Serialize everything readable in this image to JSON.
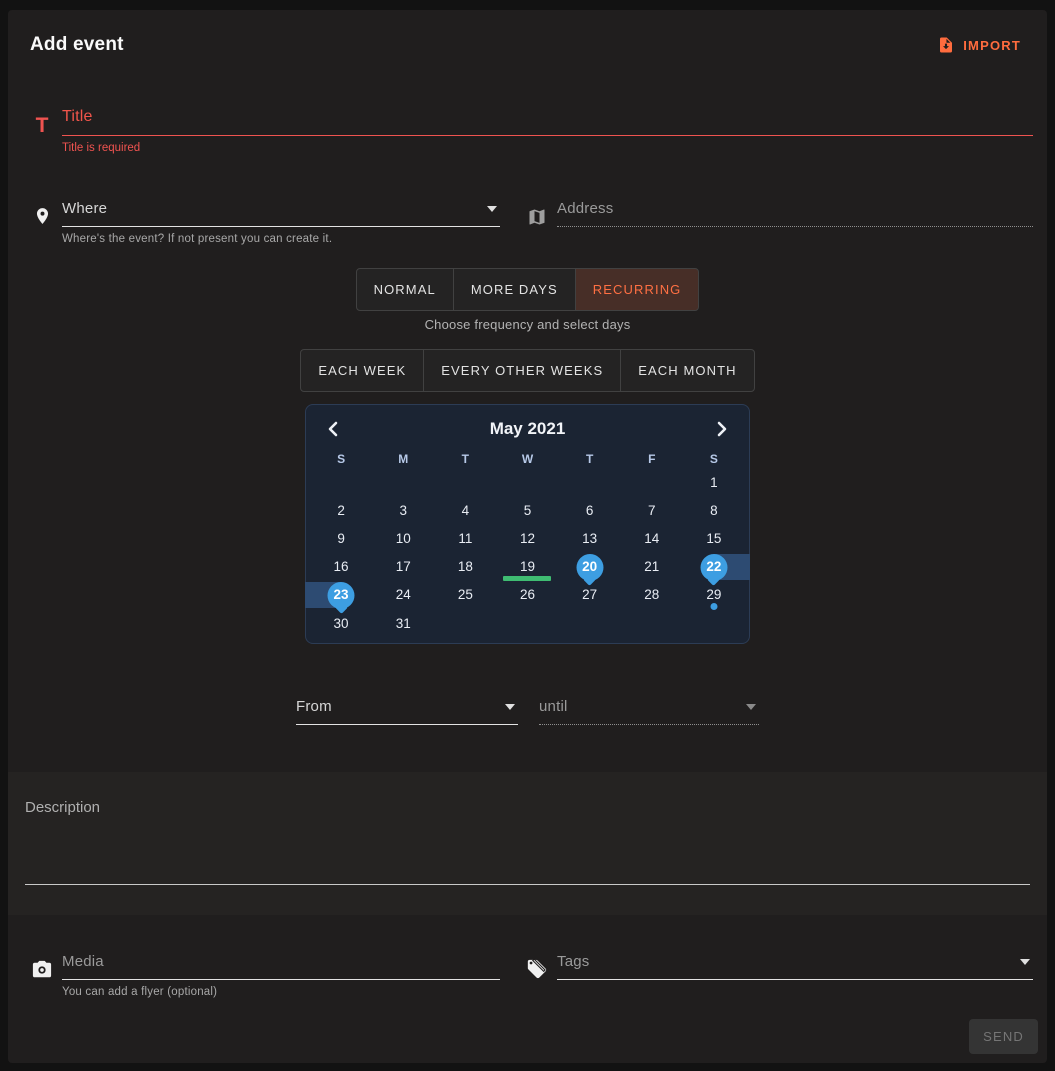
{
  "header": {
    "title": "Add event",
    "import_label": "IMPORT"
  },
  "fields": {
    "title": {
      "placeholder": "Title",
      "error": "Title is required"
    },
    "where": {
      "placeholder": "Where",
      "helper": "Where's the event? If not present you can create it."
    },
    "address": {
      "placeholder": "Address"
    },
    "from": {
      "placeholder": "From"
    },
    "until": {
      "placeholder": "until"
    },
    "description": {
      "placeholder": "Description"
    },
    "media": {
      "placeholder": "Media",
      "helper": "You can add a flyer (optional)"
    },
    "tags": {
      "placeholder": "Tags"
    }
  },
  "event_type_tabs": [
    {
      "label": "NORMAL",
      "active": false
    },
    {
      "label": "MORE DAYS",
      "active": false
    },
    {
      "label": "RECURRING",
      "active": true
    }
  ],
  "frequency": {
    "hint": "Choose frequency and select days",
    "options": [
      "EACH WEEK",
      "EVERY OTHER WEEKS",
      "EACH MONTH"
    ]
  },
  "calendar": {
    "month_label": "May 2021",
    "weekdays": [
      "S",
      "M",
      "T",
      "W",
      "T",
      "F",
      "S"
    ],
    "days_in_month": 31,
    "first_day_column": 7,
    "selected_days": [
      20,
      22,
      23
    ],
    "range_days": {
      "start": 22,
      "end": 23
    },
    "underlined_day": 19,
    "dotted_day": 29
  },
  "footer": {
    "send_label": "SEND"
  },
  "colors": {
    "accent_orange": "#ff6c3e",
    "error_red": "#ef5350",
    "selection_blue": "#3d9ee2",
    "range_blue": "#2d4b72",
    "highlight_green": "#3fbc72"
  }
}
